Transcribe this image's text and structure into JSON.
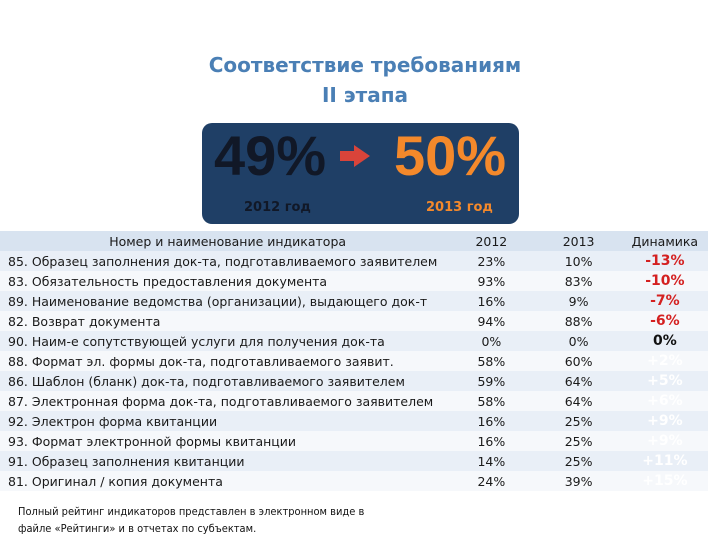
{
  "title": {
    "line1": "Соответствие требованиям",
    "line2": "II этапа"
  },
  "summary": {
    "old_value": "49%",
    "old_year": "2012 год",
    "new_value": "50%",
    "new_year": "2013 год",
    "colors": {
      "panel": "#1f3f66",
      "old": "#111827",
      "new": "#f4892b",
      "arrow": "#d9443a"
    },
    "arrow_icon": "right-arrow-icon"
  },
  "table": {
    "headers": [
      "Номер и наименование индикатора",
      "2012",
      "2013",
      "Динамика"
    ],
    "rows": [
      {
        "name": "85. Образец заполнения док-та, подготавливаемого заявителем",
        "y2012": "23%",
        "y2013": "10%",
        "dyn": "-13%",
        "dyn_color": "#d42020"
      },
      {
        "name": "83. Обязательность предоставления документа",
        "y2012": "93%",
        "y2013": "83%",
        "dyn": "-10%",
        "dyn_color": "#d42020"
      },
      {
        "name": "89. Наименование ведомства (организации), выдающего док-т",
        "y2012": "16%",
        "y2013": "9%",
        "dyn": "-7%",
        "dyn_color": "#d42020"
      },
      {
        "name": "82. Возврат документа",
        "y2012": "94%",
        "y2013": "88%",
        "dyn": "-6%",
        "dyn_color": "#d42020"
      },
      {
        "name": "90. Наим-е сопутствующей услуги для получения док-та",
        "y2012": "0%",
        "y2013": "0%",
        "dyn": "0%",
        "dyn_color": "#111111"
      },
      {
        "name": "88. Формат эл. формы док-та, подготавливаемого заявит.",
        "y2012": "58%",
        "y2013": "60%",
        "dyn": "+2%",
        "dyn_color": "#ffffff"
      },
      {
        "name": "86. Шаблон (бланк) док-та, подготавливаемого заявителем",
        "y2012": "59%",
        "y2013": "64%",
        "dyn": "+5%",
        "dyn_color": "#ffffff"
      },
      {
        "name": "87. Электронная форма док-та, подготавливаемого заявителем",
        "y2012": "58%",
        "y2013": "64%",
        "dyn": "+6%",
        "dyn_color": "#ffffff"
      },
      {
        "name": "92. Электрон форма квитанции",
        "y2012": "16%",
        "y2013": "25%",
        "dyn": "+9%",
        "dyn_color": "#ffffff"
      },
      {
        "name": "93. Формат электронной формы квитанции",
        "y2012": "16%",
        "y2013": "25%",
        "dyn": "+9%",
        "dyn_color": "#ffffff"
      },
      {
        "name": "91. Образец заполнения квитанции",
        "y2012": "14%",
        "y2013": "25%",
        "dyn": "+11%",
        "dyn_color": "#ffffff"
      },
      {
        "name": "81. Оригинал / копия документа",
        "y2012": "24%",
        "y2013": "39%",
        "dyn": "+15%",
        "dyn_color": "#ffffff"
      }
    ]
  },
  "footer": {
    "line1": "Полный рейтинг индикаторов представлен в электронном виде в",
    "line2": "файле «Рейтинги» и в отчетах по субъектам."
  }
}
